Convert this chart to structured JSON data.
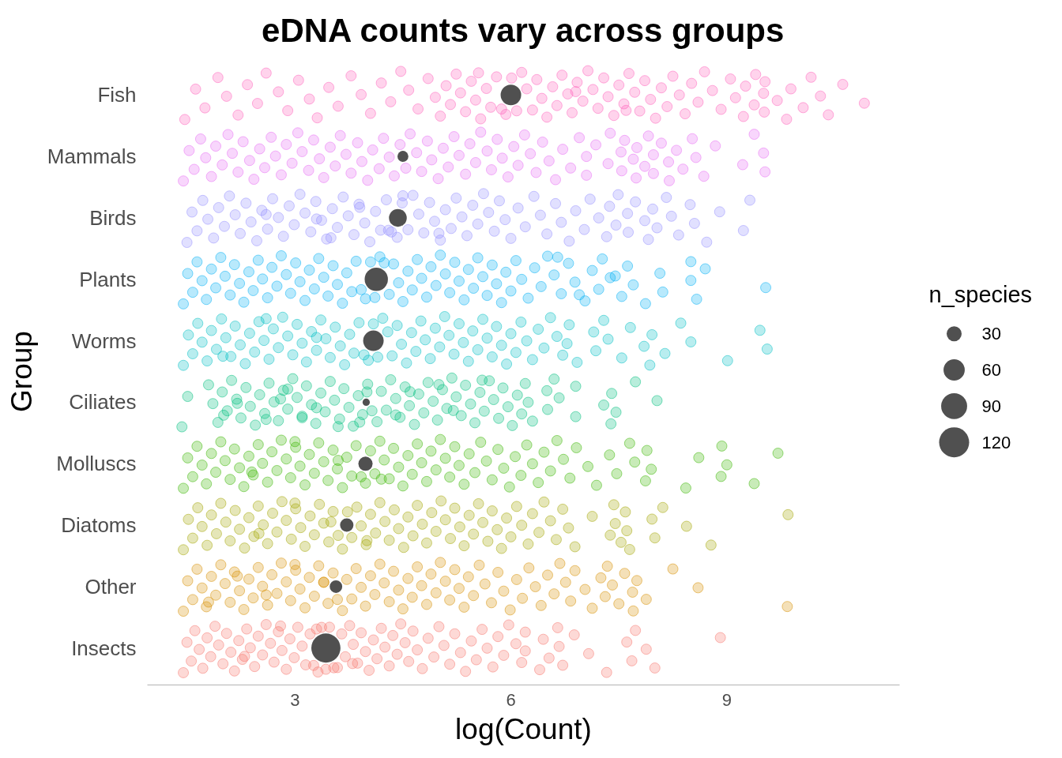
{
  "chart_data": {
    "type": "scatter",
    "orientation": "horizontal",
    "title": "eDNA counts vary across groups",
    "xlabel": "log(Count)",
    "ylabel": "Group",
    "legend_title": "n_species",
    "categories": [
      "Fish",
      "Mammals",
      "Birds",
      "Plants",
      "Worms",
      "Ciliates",
      "Molluscs",
      "Diatoms",
      "Other",
      "Insects"
    ],
    "xlim": [
      0.95,
      11.4
    ],
    "xticks": [
      3,
      6,
      9
    ],
    "grid": false,
    "marker": "circle",
    "size_legend": [
      30,
      60,
      90,
      120
    ],
    "series": [
      {
        "color": "#ff62bc",
        "x": [
          "Fish",
          "Fish",
          "Fish",
          "Fish",
          "Fish",
          "Fish",
          "Fish",
          "Fish",
          "Fish",
          "Fish",
          "Fish",
          "Fish",
          "Fish",
          "Fish",
          "Fish",
          "Fish",
          "Fish",
          "Fish",
          "Fish",
          "Fish",
          "Fish",
          "Fish",
          "Fish",
          "Fish",
          "Fish",
          "Fish",
          "Fish",
          "Fish",
          "Fish",
          "Fish",
          "Fish",
          "Fish",
          "Fish",
          "Fish",
          "Fish",
          "Fish",
          "Fish",
          "Fish",
          "Fish",
          "Fish",
          "Fish",
          "Fish",
          "Fish",
          "Fish",
          "Fish",
          "Fish",
          "Fish",
          "Fish",
          "Fish",
          "Fish",
          "Fish",
          "Fish",
          "Fish",
          "Fish",
          "Fish",
          "Fish",
          "Fish",
          "Fish",
          "Fish",
          "Fish",
          "Fish",
          "Fish",
          "Fish",
          "Fish",
          "Fish",
          "Fish",
          "Fish",
          "Fish",
          "Fish",
          "Fish",
          "Fish",
          "Fish",
          "Fish",
          "Fish",
          "Fish",
          "Fish",
          "Fish",
          "Fish",
          "Fish",
          "Fish",
          "Fish",
          "Fish",
          "Fish",
          "Fish",
          "Fish",
          "Fish",
          "Fish",
          "Fish",
          "Fish",
          "Fish",
          "Fish",
          "Fish",
          "Fish",
          "Fish",
          "Fish",
          "Fish",
          "Fish",
          "Fish",
          "Fish",
          "Fish"
        ],
        "values": [
          1.47,
          1.62,
          1.75,
          1.93,
          2.05,
          2.21,
          2.34,
          2.48,
          2.6,
          2.77,
          2.9,
          3.05,
          3.2,
          3.31,
          3.47,
          3.6,
          3.78,
          3.92,
          4.05,
          4.2,
          4.33,
          4.47,
          4.58,
          4.71,
          4.85,
          4.95,
          5.02,
          5.1,
          5.16,
          5.24,
          5.3,
          5.37,
          5.45,
          5.51,
          5.58,
          5.66,
          5.72,
          5.8,
          5.87,
          5.93,
          6.01,
          6.08,
          6.15,
          6.22,
          6.3,
          6.36,
          6.43,
          6.5,
          6.58,
          6.64,
          6.71,
          6.79,
          6.85,
          6.92,
          7.0,
          7.07,
          7.14,
          7.21,
          7.29,
          7.35,
          7.43,
          7.5,
          7.57,
          7.64,
          7.72,
          7.79,
          7.86,
          7.94,
          8.01,
          8.09,
          8.17,
          8.25,
          8.34,
          8.42,
          8.51,
          8.6,
          8.69,
          8.8,
          8.92,
          9.05,
          9.12,
          9.23,
          9.26,
          9.38,
          9.4,
          9.51,
          9.52,
          9.53,
          9.7,
          9.83,
          9.89,
          10.06,
          10.17,
          10.3,
          10.41,
          10.61,
          10.91,
          5.55,
          6.9,
          7.6
        ]
      },
      {
        "color": "#e76bf3",
        "x": [
          "Mammals",
          "Mammals",
          "Mammals",
          "Mammals",
          "Mammals",
          "Mammals",
          "Mammals",
          "Mammals",
          "Mammals",
          "Mammals",
          "Mammals",
          "Mammals",
          "Mammals",
          "Mammals",
          "Mammals",
          "Mammals",
          "Mammals",
          "Mammals",
          "Mammals",
          "Mammals",
          "Mammals",
          "Mammals",
          "Mammals",
          "Mammals",
          "Mammals",
          "Mammals",
          "Mammals",
          "Mammals",
          "Mammals",
          "Mammals",
          "Mammals",
          "Mammals",
          "Mammals",
          "Mammals",
          "Mammals",
          "Mammals",
          "Mammals",
          "Mammals",
          "Mammals",
          "Mammals",
          "Mammals",
          "Mammals",
          "Mammals",
          "Mammals",
          "Mammals",
          "Mammals",
          "Mammals",
          "Mammals",
          "Mammals",
          "Mammals",
          "Mammals",
          "Mammals",
          "Mammals",
          "Mammals",
          "Mammals",
          "Mammals",
          "Mammals",
          "Mammals",
          "Mammals",
          "Mammals",
          "Mammals",
          "Mammals",
          "Mammals",
          "Mammals",
          "Mammals",
          "Mammals",
          "Mammals",
          "Mammals",
          "Mammals",
          "Mammals",
          "Mammals",
          "Mammals",
          "Mammals",
          "Mammals",
          "Mammals",
          "Mammals",
          "Mammals",
          "Mammals",
          "Mammals",
          "Mammals",
          "Mammals",
          "Mammals",
          "Mammals",
          "Mammals",
          "Mammals",
          "Mammals",
          "Mammals",
          "Mammals",
          "Mammals",
          "Mammals",
          "Mammals",
          "Mammals",
          "Mammals",
          "Mammals",
          "Mammals",
          "Mammals",
          "Mammals",
          "Mammals",
          "Mammals",
          "Mammals"
        ],
        "values": [
          1.45,
          1.53,
          1.6,
          1.69,
          1.76,
          1.84,
          1.9,
          1.99,
          2.07,
          2.13,
          2.21,
          2.28,
          2.37,
          2.43,
          2.51,
          2.58,
          2.67,
          2.73,
          2.81,
          2.88,
          2.96,
          3.04,
          3.1,
          3.19,
          3.26,
          3.34,
          3.4,
          3.49,
          3.56,
          3.63,
          3.71,
          3.78,
          3.87,
          3.93,
          4.01,
          4.08,
          4.17,
          4.23,
          4.31,
          4.38,
          4.46,
          4.54,
          4.6,
          4.69,
          4.76,
          4.84,
          4.9,
          4.99,
          5.06,
          5.13,
          5.21,
          5.28,
          5.37,
          5.43,
          5.51,
          5.58,
          5.67,
          5.73,
          5.81,
          5.88,
          5.96,
          6.04,
          6.1,
          6.19,
          6.27,
          6.35,
          6.44,
          6.53,
          6.62,
          6.72,
          6.83,
          6.95,
          7.05,
          7.05,
          7.18,
          7.35,
          7.38,
          7.53,
          7.54,
          7.58,
          7.7,
          7.74,
          7.75,
          7.86,
          7.91,
          7.98,
          7.98,
          8.09,
          8.19,
          8.2,
          8.3,
          8.39,
          8.52,
          8.57,
          8.68,
          8.84,
          9.22,
          9.38,
          9.51,
          9.53
        ]
      },
      {
        "color": "#9590ff",
        "x": [
          "Birds",
          "Birds",
          "Birds",
          "Birds",
          "Birds",
          "Birds",
          "Birds",
          "Birds",
          "Birds",
          "Birds",
          "Birds",
          "Birds",
          "Birds",
          "Birds",
          "Birds",
          "Birds",
          "Birds",
          "Birds",
          "Birds",
          "Birds",
          "Birds",
          "Birds",
          "Birds",
          "Birds",
          "Birds",
          "Birds",
          "Birds",
          "Birds",
          "Birds",
          "Birds",
          "Birds",
          "Birds",
          "Birds",
          "Birds",
          "Birds",
          "Birds",
          "Birds",
          "Birds",
          "Birds",
          "Birds",
          "Birds",
          "Birds",
          "Birds",
          "Birds",
          "Birds",
          "Birds",
          "Birds",
          "Birds",
          "Birds",
          "Birds",
          "Birds",
          "Birds",
          "Birds",
          "Birds",
          "Birds",
          "Birds",
          "Birds",
          "Birds",
          "Birds",
          "Birds",
          "Birds",
          "Birds",
          "Birds",
          "Birds",
          "Birds",
          "Birds",
          "Birds",
          "Birds",
          "Birds",
          "Birds",
          "Birds",
          "Birds",
          "Birds",
          "Birds",
          "Birds",
          "Birds",
          "Birds",
          "Birds",
          "Birds",
          "Birds",
          "Birds",
          "Birds",
          "Birds",
          "Birds",
          "Birds",
          "Birds",
          "Birds",
          "Birds",
          "Birds",
          "Birds",
          "Birds",
          "Birds",
          "Birds",
          "Birds",
          "Birds",
          "Birds",
          "Birds",
          "Birds",
          "Birds",
          "Birds"
        ],
        "values": [
          1.5,
          1.57,
          1.64,
          1.72,
          1.79,
          1.87,
          1.94,
          2.02,
          2.09,
          2.17,
          2.24,
          2.32,
          2.39,
          2.47,
          2.54,
          2.62,
          2.69,
          2.77,
          2.84,
          2.92,
          2.99,
          3.07,
          3.14,
          3.22,
          3.29,
          3.37,
          3.44,
          3.52,
          3.59,
          3.67,
          3.74,
          3.82,
          3.89,
          3.97,
          4.04,
          4.12,
          4.19,
          4.27,
          4.34,
          4.42,
          4.49,
          4.57,
          4.64,
          4.72,
          4.79,
          4.87,
          4.94,
          5.02,
          5.09,
          5.17,
          5.24,
          5.32,
          5.39,
          5.47,
          5.54,
          5.62,
          5.69,
          5.77,
          5.84,
          5.92,
          6.0,
          6.1,
          6.2,
          6.32,
          6.41,
          6.5,
          6.62,
          6.7,
          6.81,
          6.9,
          7.02,
          7.1,
          7.22,
          7.33,
          7.37,
          7.46,
          7.49,
          7.62,
          7.63,
          7.73,
          7.86,
          7.91,
          7.97,
          8.03,
          8.16,
          8.23,
          8.33,
          8.49,
          8.55,
          8.72,
          8.9,
          9.23,
          9.32,
          3.3,
          3.5,
          3.9,
          4.3,
          4.5,
          2.6,
          5.0
        ]
      },
      {
        "color": "#00b0f6",
        "x": [
          "Plants",
          "Plants",
          "Plants",
          "Plants",
          "Plants",
          "Plants",
          "Plants",
          "Plants",
          "Plants",
          "Plants",
          "Plants",
          "Plants",
          "Plants",
          "Plants",
          "Plants",
          "Plants",
          "Plants",
          "Plants",
          "Plants",
          "Plants",
          "Plants",
          "Plants",
          "Plants",
          "Plants",
          "Plants",
          "Plants",
          "Plants",
          "Plants",
          "Plants",
          "Plants",
          "Plants",
          "Plants",
          "Plants",
          "Plants",
          "Plants",
          "Plants",
          "Plants",
          "Plants",
          "Plants",
          "Plants",
          "Plants",
          "Plants",
          "Plants",
          "Plants",
          "Plants",
          "Plants",
          "Plants",
          "Plants",
          "Plants",
          "Plants",
          "Plants",
          "Plants",
          "Plants",
          "Plants",
          "Plants",
          "Plants",
          "Plants",
          "Plants",
          "Plants",
          "Plants",
          "Plants",
          "Plants",
          "Plants",
          "Plants",
          "Plants",
          "Plants",
          "Plants",
          "Plants",
          "Plants",
          "Plants",
          "Plants",
          "Plants",
          "Plants",
          "Plants",
          "Plants",
          "Plants",
          "Plants",
          "Plants",
          "Plants",
          "Plants",
          "Plants",
          "Plants",
          "Plants",
          "Plants",
          "Plants",
          "Plants",
          "Plants",
          "Plants",
          "Plants",
          "Plants",
          "Plants",
          "Plants",
          "Plants",
          "Plants",
          "Plants",
          "Plants",
          "Plants",
          "Plants",
          "Plants",
          "Plants"
        ],
        "values": [
          1.45,
          1.51,
          1.58,
          1.64,
          1.71,
          1.77,
          1.84,
          1.9,
          1.97,
          2.03,
          2.1,
          2.16,
          2.23,
          2.29,
          2.36,
          2.42,
          2.49,
          2.55,
          2.62,
          2.68,
          2.75,
          2.81,
          2.88,
          2.94,
          3.01,
          3.07,
          3.14,
          3.2,
          3.27,
          3.33,
          3.4,
          3.46,
          3.53,
          3.59,
          3.66,
          3.72,
          3.79,
          3.85,
          3.92,
          3.98,
          4.05,
          4.11,
          4.18,
          4.24,
          4.31,
          4.37,
          4.44,
          4.5,
          4.57,
          4.63,
          4.7,
          4.76,
          4.83,
          4.89,
          4.96,
          5.02,
          5.09,
          5.15,
          5.22,
          5.28,
          5.35,
          5.41,
          5.48,
          5.54,
          5.61,
          5.67,
          5.74,
          5.8,
          5.87,
          5.93,
          6.0,
          6.07,
          6.15,
          6.24,
          6.33,
          6.42,
          6.51,
          6.6,
          6.7,
          6.8,
          6.89,
          7.03,
          7.13,
          7.22,
          7.27,
          7.38,
          7.54,
          7.62,
          7.7,
          7.87,
          8.07,
          8.11,
          8.5,
          8.5,
          8.58,
          8.7,
          9.54,
          6.65,
          7.45,
          6.95
        ]
      },
      {
        "color": "#00bfc4",
        "x": [
          "Worms",
          "Worms",
          "Worms",
          "Worms",
          "Worms",
          "Worms",
          "Worms",
          "Worms",
          "Worms",
          "Worms",
          "Worms",
          "Worms",
          "Worms",
          "Worms",
          "Worms",
          "Worms",
          "Worms",
          "Worms",
          "Worms",
          "Worms",
          "Worms",
          "Worms",
          "Worms",
          "Worms",
          "Worms",
          "Worms",
          "Worms",
          "Worms",
          "Worms",
          "Worms",
          "Worms",
          "Worms",
          "Worms",
          "Worms",
          "Worms",
          "Worms",
          "Worms",
          "Worms",
          "Worms",
          "Worms",
          "Worms",
          "Worms",
          "Worms",
          "Worms",
          "Worms",
          "Worms",
          "Worms",
          "Worms",
          "Worms",
          "Worms",
          "Worms",
          "Worms",
          "Worms",
          "Worms",
          "Worms",
          "Worms",
          "Worms",
          "Worms",
          "Worms",
          "Worms",
          "Worms",
          "Worms",
          "Worms",
          "Worms",
          "Worms",
          "Worms",
          "Worms",
          "Worms",
          "Worms",
          "Worms",
          "Worms",
          "Worms",
          "Worms",
          "Worms",
          "Worms",
          "Worms",
          "Worms",
          "Worms",
          "Worms",
          "Worms",
          "Worms",
          "Worms",
          "Worms",
          "Worms",
          "Worms",
          "Worms",
          "Worms",
          "Worms",
          "Worms",
          "Worms",
          "Worms",
          "Worms",
          "Worms",
          "Worms",
          "Worms",
          "Worms",
          "Worms",
          "Worms",
          "Worms",
          "Worms"
        ],
        "values": [
          1.45,
          1.52,
          1.58,
          1.65,
          1.71,
          1.78,
          1.84,
          1.91,
          1.98,
          2.04,
          2.11,
          2.17,
          2.24,
          2.31,
          2.37,
          2.44,
          2.5,
          2.57,
          2.64,
          2.7,
          2.77,
          2.83,
          2.9,
          2.97,
          3.03,
          3.1,
          3.16,
          3.23,
          3.3,
          3.36,
          3.43,
          3.49,
          3.56,
          3.63,
          3.69,
          3.76,
          3.82,
          3.89,
          3.96,
          4.02,
          4.09,
          4.15,
          4.22,
          4.29,
          4.35,
          4.42,
          4.48,
          4.55,
          4.62,
          4.68,
          4.75,
          4.81,
          4.88,
          4.95,
          5.01,
          5.08,
          5.14,
          5.21,
          5.28,
          5.34,
          5.41,
          5.47,
          5.54,
          5.61,
          5.67,
          5.74,
          5.8,
          5.87,
          5.94,
          6.0,
          6.07,
          6.14,
          6.22,
          6.3,
          6.38,
          6.46,
          6.55,
          6.64,
          6.72,
          6.81,
          6.78,
          6.92,
          7.15,
          7.18,
          7.29,
          7.35,
          7.54,
          7.66,
          7.85,
          7.93,
          7.96,
          8.14,
          8.36,
          8.5,
          9.01,
          9.46,
          9.56,
          2.6,
          3.3,
          2.0
        ]
      },
      {
        "color": "#00bf7d",
        "x": [
          "Ciliates",
          "Ciliates",
          "Ciliates",
          "Ciliates",
          "Ciliates",
          "Ciliates",
          "Ciliates",
          "Ciliates",
          "Ciliates",
          "Ciliates",
          "Ciliates",
          "Ciliates",
          "Ciliates",
          "Ciliates",
          "Ciliates",
          "Ciliates",
          "Ciliates",
          "Ciliates",
          "Ciliates",
          "Ciliates",
          "Ciliates",
          "Ciliates",
          "Ciliates",
          "Ciliates",
          "Ciliates",
          "Ciliates",
          "Ciliates",
          "Ciliates",
          "Ciliates",
          "Ciliates",
          "Ciliates",
          "Ciliates",
          "Ciliates",
          "Ciliates",
          "Ciliates",
          "Ciliates",
          "Ciliates",
          "Ciliates",
          "Ciliates",
          "Ciliates",
          "Ciliates",
          "Ciliates",
          "Ciliates",
          "Ciliates",
          "Ciliates",
          "Ciliates",
          "Ciliates",
          "Ciliates",
          "Ciliates",
          "Ciliates",
          "Ciliates",
          "Ciliates",
          "Ciliates",
          "Ciliates",
          "Ciliates",
          "Ciliates",
          "Ciliates",
          "Ciliates",
          "Ciliates",
          "Ciliates",
          "Ciliates",
          "Ciliates",
          "Ciliates",
          "Ciliates",
          "Ciliates",
          "Ciliates",
          "Ciliates",
          "Ciliates",
          "Ciliates",
          "Ciliates",
          "Ciliates",
          "Ciliates",
          "Ciliates",
          "Ciliates",
          "Ciliates",
          "Ciliates",
          "Ciliates",
          "Ciliates",
          "Ciliates",
          "Ciliates",
          "Ciliates",
          "Ciliates",
          "Ciliates",
          "Ciliates",
          "Ciliates",
          "Ciliates",
          "Ciliates",
          "Ciliates",
          "Ciliates",
          "Ciliates",
          "Ciliates",
          "Ciliates",
          "Ciliates",
          "Ciliates",
          "Ciliates",
          "Ciliates",
          "Ciliates",
          "Ciliates",
          "Ciliates",
          "Ciliates"
        ],
        "values": [
          1.43,
          1.51,
          2.01,
          1.8,
          1.86,
          1.93,
          1.99,
          2.06,
          2.12,
          2.19,
          2.25,
          2.32,
          2.38,
          2.45,
          2.51,
          2.58,
          2.64,
          2.71,
          2.77,
          2.84,
          2.9,
          2.97,
          3.03,
          3.1,
          3.16,
          3.23,
          3.29,
          3.36,
          3.42,
          3.49,
          3.55,
          3.62,
          3.68,
          3.75,
          3.81,
          3.88,
          3.94,
          4.01,
          4.07,
          4.14,
          4.2,
          4.27,
          4.33,
          4.4,
          4.46,
          4.53,
          4.59,
          4.66,
          4.72,
          4.79,
          4.85,
          4.92,
          4.98,
          5.05,
          5.11,
          5.18,
          5.24,
          5.31,
          5.37,
          5.44,
          5.5,
          5.57,
          5.63,
          5.7,
          5.76,
          5.83,
          5.89,
          5.96,
          6.02,
          6.09,
          6.15,
          6.2,
          6.24,
          6.3,
          6.5,
          6.51,
          6.6,
          6.67,
          6.9,
          6.9,
          7.29,
          7.39,
          7.4,
          7.46,
          7.73,
          8.03,
          2.6,
          2.9,
          3.3,
          3.6,
          4.0,
          4.4,
          5.0,
          2.2,
          3.9,
          4.6,
          5.2,
          5.6,
          2.8,
          3.1
        ]
      },
      {
        "color": "#39b600",
        "x": [
          "Molluscs",
          "Molluscs",
          "Molluscs",
          "Molluscs",
          "Molluscs",
          "Molluscs",
          "Molluscs",
          "Molluscs",
          "Molluscs",
          "Molluscs",
          "Molluscs",
          "Molluscs",
          "Molluscs",
          "Molluscs",
          "Molluscs",
          "Molluscs",
          "Molluscs",
          "Molluscs",
          "Molluscs",
          "Molluscs",
          "Molluscs",
          "Molluscs",
          "Molluscs",
          "Molluscs",
          "Molluscs",
          "Molluscs",
          "Molluscs",
          "Molluscs",
          "Molluscs",
          "Molluscs",
          "Molluscs",
          "Molluscs",
          "Molluscs",
          "Molluscs",
          "Molluscs",
          "Molluscs",
          "Molluscs",
          "Molluscs",
          "Molluscs",
          "Molluscs",
          "Molluscs",
          "Molluscs",
          "Molluscs",
          "Molluscs",
          "Molluscs",
          "Molluscs",
          "Molluscs",
          "Molluscs",
          "Molluscs",
          "Molluscs",
          "Molluscs",
          "Molluscs",
          "Molluscs",
          "Molluscs",
          "Molluscs",
          "Molluscs",
          "Molluscs",
          "Molluscs",
          "Molluscs",
          "Molluscs",
          "Molluscs",
          "Molluscs",
          "Molluscs",
          "Molluscs",
          "Molluscs",
          "Molluscs",
          "Molluscs",
          "Molluscs",
          "Molluscs",
          "Molluscs",
          "Molluscs",
          "Molluscs",
          "Molluscs",
          "Molluscs",
          "Molluscs",
          "Molluscs",
          "Molluscs",
          "Molluscs",
          "Molluscs",
          "Molluscs",
          "Molluscs",
          "Molluscs",
          "Molluscs",
          "Molluscs",
          "Molluscs",
          "Molluscs",
          "Molluscs",
          "Molluscs",
          "Molluscs",
          "Molluscs",
          "Molluscs",
          "Molluscs",
          "Molluscs",
          "Molluscs",
          "Molluscs",
          "Molluscs",
          "Molluscs",
          "Molluscs",
          "Molluscs",
          "Molluscs"
        ],
        "values": [
          1.45,
          1.51,
          1.58,
          1.64,
          1.71,
          1.77,
          1.84,
          1.9,
          1.97,
          2.03,
          2.1,
          2.16,
          2.23,
          2.29,
          2.36,
          2.42,
          2.49,
          2.55,
          2.62,
          2.68,
          2.75,
          2.81,
          2.88,
          2.94,
          3.01,
          3.07,
          3.14,
          3.2,
          3.27,
          3.33,
          3.4,
          3.46,
          3.53,
          3.59,
          3.66,
          3.72,
          3.79,
          3.85,
          3.92,
          3.98,
          4.05,
          4.11,
          4.18,
          4.24,
          4.31,
          4.37,
          4.44,
          4.5,
          4.57,
          4.63,
          4.7,
          4.76,
          4.83,
          4.89,
          4.96,
          5.02,
          5.09,
          5.15,
          5.22,
          5.28,
          5.35,
          5.42,
          5.5,
          5.58,
          5.66,
          5.74,
          5.82,
          5.9,
          5.98,
          6.06,
          6.14,
          6.22,
          6.3,
          6.38,
          6.46,
          6.55,
          6.64,
          6.73,
          6.82,
          6.91,
          7.07,
          7.19,
          7.37,
          7.47,
          7.65,
          7.72,
          7.87,
          7.89,
          7.95,
          8.43,
          8.61,
          8.92,
          8.93,
          9.0,
          9.38,
          9.71,
          2.4,
          3.0,
          3.6,
          4.2
        ]
      },
      {
        "color": "#a3a500",
        "x": [
          "Diatoms",
          "Diatoms",
          "Diatoms",
          "Diatoms",
          "Diatoms",
          "Diatoms",
          "Diatoms",
          "Diatoms",
          "Diatoms",
          "Diatoms",
          "Diatoms",
          "Diatoms",
          "Diatoms",
          "Diatoms",
          "Diatoms",
          "Diatoms",
          "Diatoms",
          "Diatoms",
          "Diatoms",
          "Diatoms",
          "Diatoms",
          "Diatoms",
          "Diatoms",
          "Diatoms",
          "Diatoms",
          "Diatoms",
          "Diatoms",
          "Diatoms",
          "Diatoms",
          "Diatoms",
          "Diatoms",
          "Diatoms",
          "Diatoms",
          "Diatoms",
          "Diatoms",
          "Diatoms",
          "Diatoms",
          "Diatoms",
          "Diatoms",
          "Diatoms",
          "Diatoms",
          "Diatoms",
          "Diatoms",
          "Diatoms",
          "Diatoms",
          "Diatoms",
          "Diatoms",
          "Diatoms",
          "Diatoms",
          "Diatoms",
          "Diatoms",
          "Diatoms",
          "Diatoms",
          "Diatoms",
          "Diatoms",
          "Diatoms",
          "Diatoms",
          "Diatoms",
          "Diatoms",
          "Diatoms",
          "Diatoms",
          "Diatoms",
          "Diatoms",
          "Diatoms",
          "Diatoms",
          "Diatoms",
          "Diatoms",
          "Diatoms",
          "Diatoms",
          "Diatoms",
          "Diatoms",
          "Diatoms",
          "Diatoms",
          "Diatoms",
          "Diatoms",
          "Diatoms",
          "Diatoms",
          "Diatoms",
          "Diatoms",
          "Diatoms",
          "Diatoms",
          "Diatoms",
          "Diatoms",
          "Diatoms",
          "Diatoms",
          "Diatoms",
          "Diatoms",
          "Diatoms",
          "Diatoms",
          "Diatoms",
          "Diatoms",
          "Diatoms",
          "Diatoms",
          "Diatoms",
          "Diatoms",
          "Diatoms",
          "Diatoms",
          "Diatoms",
          "Diatoms",
          "Diatoms"
        ],
        "values": [
          1.45,
          1.52,
          1.58,
          1.65,
          1.71,
          1.78,
          1.84,
          1.91,
          1.97,
          2.04,
          2.1,
          2.17,
          2.23,
          2.3,
          2.36,
          2.43,
          2.49,
          2.56,
          2.62,
          2.69,
          2.75,
          2.82,
          2.88,
          2.95,
          3.01,
          3.08,
          3.14,
          3.21,
          3.27,
          3.34,
          3.4,
          3.47,
          3.53,
          3.6,
          3.66,
          3.73,
          3.79,
          3.86,
          3.92,
          3.99,
          4.05,
          4.12,
          4.18,
          4.25,
          4.31,
          4.38,
          4.44,
          4.51,
          4.57,
          4.64,
          4.7,
          4.77,
          4.83,
          4.9,
          4.96,
          5.03,
          5.09,
          5.16,
          5.22,
          5.29,
          5.35,
          5.42,
          5.48,
          5.55,
          5.61,
          5.68,
          5.74,
          5.81,
          5.87,
          5.94,
          6.0,
          6.08,
          6.15,
          6.24,
          6.3,
          6.39,
          6.46,
          6.55,
          6.63,
          6.72,
          6.8,
          6.89,
          7.13,
          7.38,
          7.43,
          7.45,
          7.53,
          7.59,
          7.61,
          7.65,
          7.96,
          8.0,
          8.11,
          8.44,
          8.78,
          9.85,
          2.5,
          3.0,
          3.5,
          4.0
        ]
      },
      {
        "color": "#d89000",
        "x": [
          "Other",
          "Other",
          "Other",
          "Other",
          "Other",
          "Other",
          "Other",
          "Other",
          "Other",
          "Other",
          "Other",
          "Other",
          "Other",
          "Other",
          "Other",
          "Other",
          "Other",
          "Other",
          "Other",
          "Other",
          "Other",
          "Other",
          "Other",
          "Other",
          "Other",
          "Other",
          "Other",
          "Other",
          "Other",
          "Other",
          "Other",
          "Other",
          "Other",
          "Other",
          "Other",
          "Other",
          "Other",
          "Other",
          "Other",
          "Other",
          "Other",
          "Other",
          "Other",
          "Other",
          "Other",
          "Other",
          "Other",
          "Other",
          "Other",
          "Other",
          "Other",
          "Other",
          "Other",
          "Other",
          "Other",
          "Other",
          "Other",
          "Other",
          "Other",
          "Other",
          "Other",
          "Other",
          "Other",
          "Other",
          "Other",
          "Other",
          "Other",
          "Other",
          "Other",
          "Other",
          "Other",
          "Other",
          "Other",
          "Other",
          "Other",
          "Other",
          "Other",
          "Other",
          "Other",
          "Other",
          "Other",
          "Other",
          "Other",
          "Other",
          "Other",
          "Other",
          "Other",
          "Other",
          "Other",
          "Other",
          "Other",
          "Other",
          "Other",
          "Other",
          "Other",
          "Other",
          "Other",
          "Other",
          "Other",
          "Other"
        ],
        "values": [
          1.45,
          1.51,
          1.58,
          1.64,
          1.71,
          1.77,
          1.84,
          1.9,
          1.97,
          2.03,
          2.1,
          2.16,
          2.23,
          2.29,
          2.36,
          2.42,
          2.49,
          2.55,
          2.62,
          2.68,
          2.75,
          2.81,
          2.88,
          2.94,
          3.01,
          3.07,
          3.14,
          3.2,
          3.27,
          3.33,
          3.4,
          3.46,
          3.53,
          3.59,
          3.66,
          3.72,
          3.79,
          3.85,
          3.92,
          3.98,
          4.05,
          4.11,
          4.18,
          4.24,
          4.31,
          4.37,
          4.44,
          4.5,
          4.57,
          4.63,
          4.7,
          4.76,
          4.83,
          4.89,
          4.96,
          5.02,
          5.09,
          5.15,
          5.22,
          5.28,
          5.35,
          5.41,
          5.48,
          5.56,
          5.64,
          5.73,
          5.82,
          5.9,
          5.99,
          6.08,
          6.16,
          6.25,
          6.34,
          6.42,
          6.51,
          6.6,
          6.68,
          6.76,
          6.83,
          6.89,
          7.03,
          7.13,
          7.25,
          7.31,
          7.34,
          7.41,
          7.5,
          7.58,
          7.69,
          7.7,
          7.75,
          7.88,
          8.25,
          8.6,
          9.84,
          2.2,
          2.6,
          3.0,
          3.4,
          1.8
        ]
      },
      {
        "color": "#f8766d",
        "x": [
          "Insects",
          "Insects",
          "Insects",
          "Insects",
          "Insects",
          "Insects",
          "Insects",
          "Insects",
          "Insects",
          "Insects",
          "Insects",
          "Insects",
          "Insects",
          "Insects",
          "Insects",
          "Insects",
          "Insects",
          "Insects",
          "Insects",
          "Insects",
          "Insects",
          "Insects",
          "Insects",
          "Insects",
          "Insects",
          "Insects",
          "Insects",
          "Insects",
          "Insects",
          "Insects",
          "Insects",
          "Insects",
          "Insects",
          "Insects",
          "Insects",
          "Insects",
          "Insects",
          "Insects",
          "Insects",
          "Insects",
          "Insects",
          "Insects",
          "Insects",
          "Insects",
          "Insects",
          "Insects",
          "Insects",
          "Insects",
          "Insects",
          "Insects",
          "Insects",
          "Insects",
          "Insects",
          "Insects",
          "Insects",
          "Insects",
          "Insects",
          "Insects",
          "Insects",
          "Insects",
          "Insects",
          "Insects",
          "Insects",
          "Insects",
          "Insects",
          "Insects",
          "Insects",
          "Insects",
          "Insects",
          "Insects",
          "Insects",
          "Insects",
          "Insects",
          "Insects",
          "Insects",
          "Insects",
          "Insects",
          "Insects",
          "Insects",
          "Insects",
          "Insects",
          "Insects",
          "Insects",
          "Insects",
          "Insects",
          "Insects",
          "Insects",
          "Insects",
          "Insects",
          "Insects",
          "Insects",
          "Insects",
          "Insects",
          "Insects",
          "Insects",
          "Insects",
          "Insects",
          "Insects",
          "Insects",
          "Insects"
        ],
        "values": [
          1.45,
          1.5,
          1.56,
          1.61,
          1.67,
          1.72,
          1.78,
          1.83,
          1.89,
          1.94,
          2.0,
          2.05,
          2.11,
          2.16,
          2.22,
          2.27,
          2.33,
          2.38,
          2.44,
          2.49,
          2.55,
          2.6,
          2.66,
          2.71,
          2.77,
          2.82,
          2.88,
          2.93,
          2.99,
          3.04,
          3.1,
          3.15,
          3.21,
          3.26,
          3.32,
          3.37,
          3.43,
          3.48,
          3.54,
          3.59,
          3.65,
          3.7,
          3.76,
          3.81,
          3.87,
          3.92,
          3.98,
          4.03,
          4.09,
          4.14,
          4.2,
          4.25,
          4.31,
          4.36,
          4.42,
          4.47,
          4.53,
          4.58,
          4.64,
          4.7,
          4.77,
          4.85,
          4.93,
          5.0,
          5.07,
          5.15,
          5.22,
          5.3,
          5.37,
          5.45,
          5.52,
          5.6,
          5.67,
          5.75,
          5.82,
          5.9,
          5.97,
          6.07,
          6.15,
          6.2,
          6.2,
          6.4,
          6.45,
          6.53,
          6.65,
          6.67,
          6.72,
          6.88,
          7.08,
          7.33,
          7.61,
          7.68,
          7.73,
          7.88,
          8.0,
          8.91,
          2.3,
          2.8,
          3.3,
          3.8
        ]
      },
      {
        "type": "bubble",
        "color": "#505050",
        "x": [
          "Fish",
          "Mammals",
          "Birds",
          "Plants",
          "Worms",
          "Ciliates",
          "Molluscs",
          "Diatoms",
          "Other",
          "Insects"
        ],
        "values": [
          6.0,
          4.5,
          4.43,
          4.13,
          4.09,
          3.99,
          3.98,
          3.72,
          3.57,
          3.43
        ],
        "sizes": [
          56,
          16,
          42,
          72,
          56,
          7,
          27,
          24,
          21,
          113
        ]
      }
    ]
  }
}
